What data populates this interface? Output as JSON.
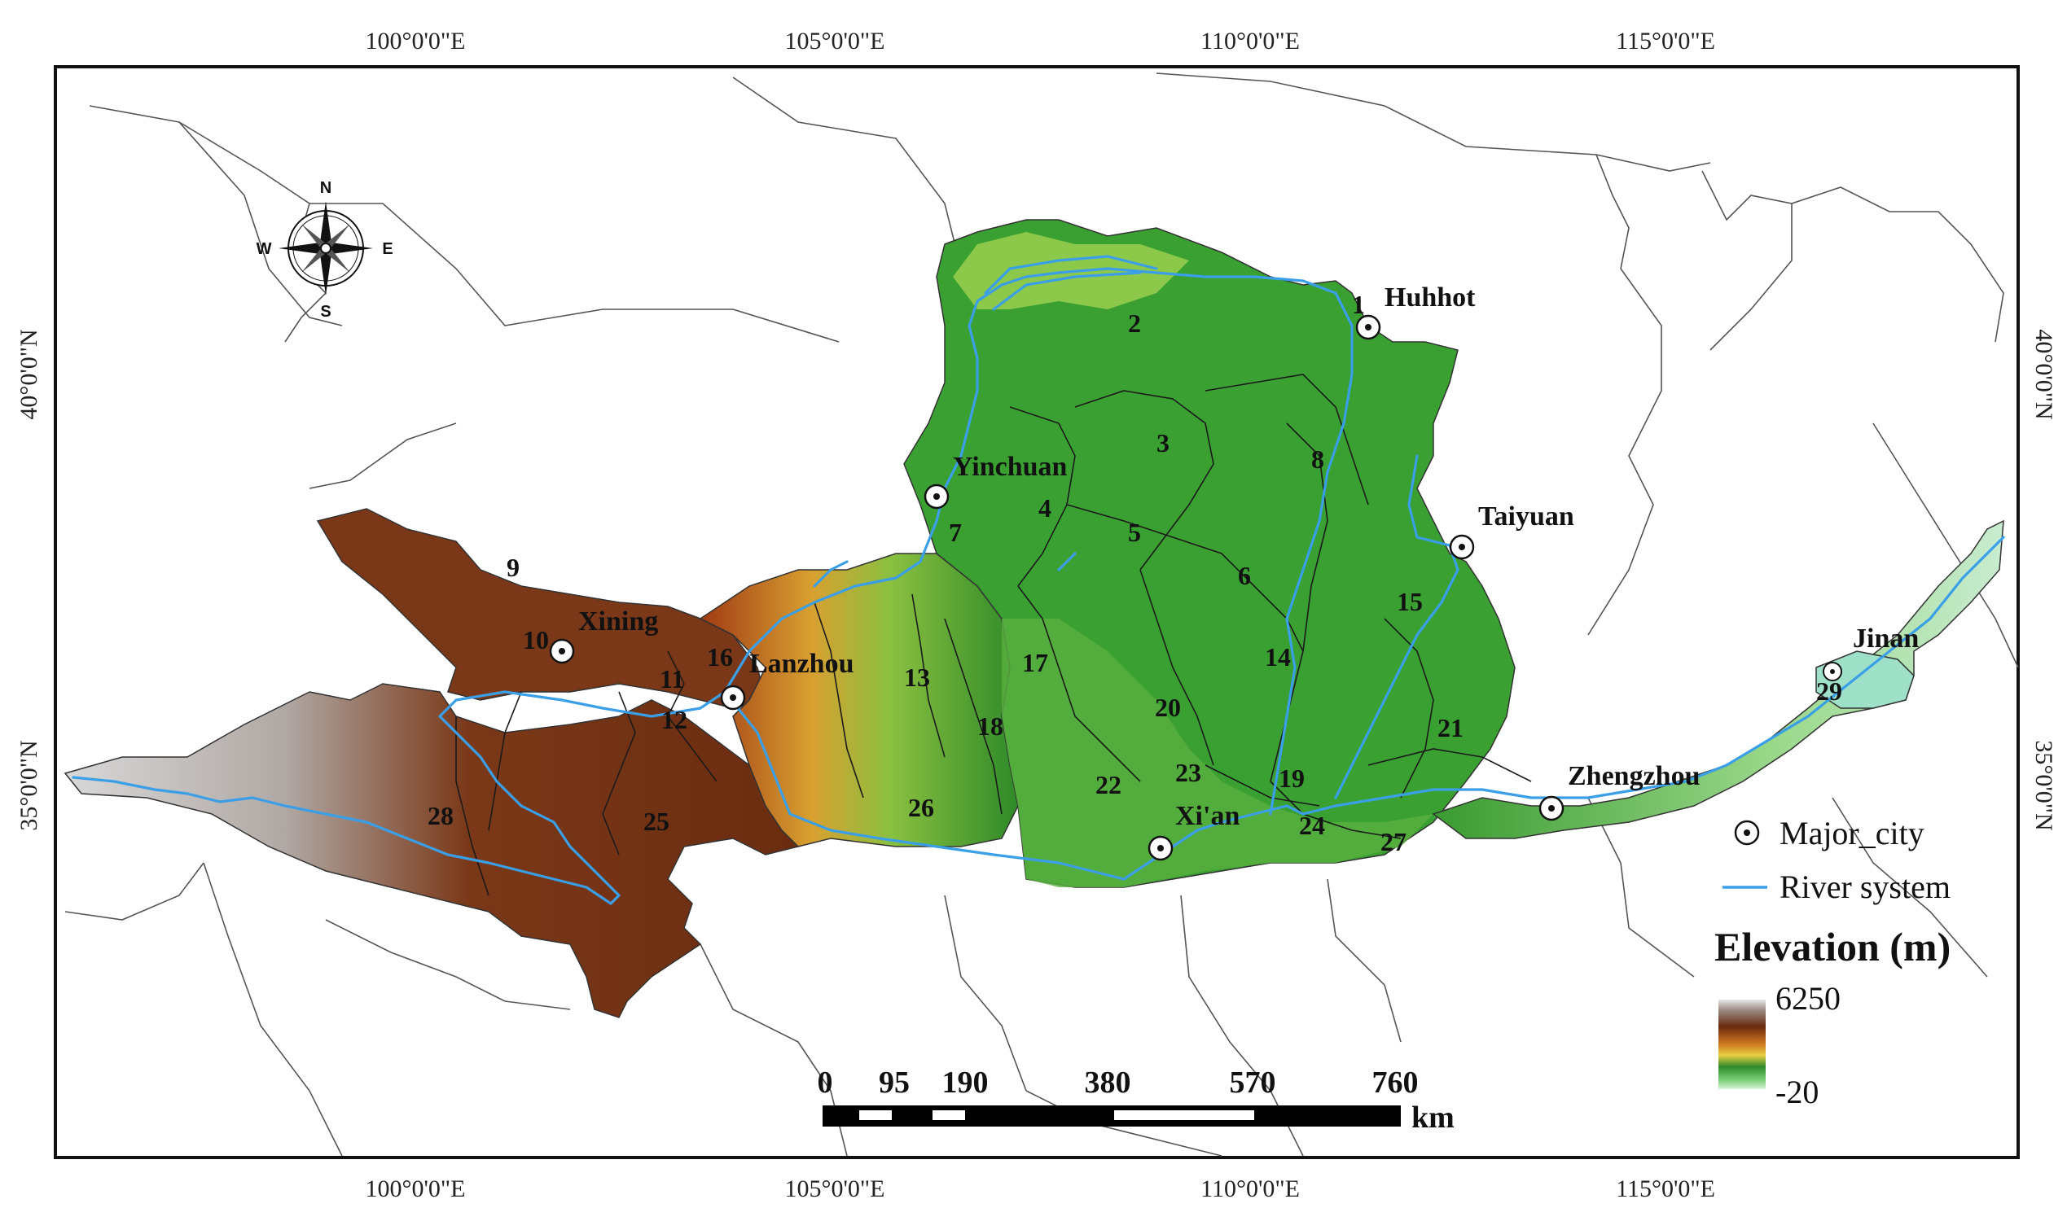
{
  "map": {
    "lon_ticks_top": [
      "100°0'0\"E",
      "105°0'0\"E",
      "110°0'0\"E",
      "115°0'0\"E"
    ],
    "lon_ticks_bottom": [
      "100°0'0\"E",
      "105°0'0\"E",
      "110°0'0\"E",
      "115°0'0\"E"
    ],
    "lat_ticks_left": [
      "40°0'0\"N",
      "35°0'0\"N"
    ],
    "lat_ticks_right": [
      "40°0'0\"N",
      "35°0'0\"N"
    ],
    "cities": [
      "Huhhot",
      "Yinchuan",
      "Taiyuan",
      "Xining",
      "Lanzhou",
      "Xi'an",
      "Zhengzhou",
      "Jinan"
    ],
    "subbasins": [
      "1",
      "2",
      "3",
      "4",
      "5",
      "6",
      "7",
      "8",
      "9",
      "10",
      "11",
      "12",
      "13",
      "14",
      "15",
      "16",
      "17",
      "18",
      "19",
      "20",
      "21",
      "22",
      "23",
      "24",
      "25",
      "26",
      "27",
      "28",
      "29"
    ],
    "compass": {
      "n": "N",
      "s": "S",
      "e": "E",
      "w": "W"
    }
  },
  "legend": {
    "city_label": "Major_city",
    "river_label": "River system",
    "elevation_title": "Elevation (m)",
    "elevation_max": "6250",
    "elevation_min": "-20"
  },
  "scalebar": {
    "labels": [
      "0",
      "95",
      "190",
      "380",
      "570",
      "760"
    ],
    "unit": "km"
  },
  "colors": {
    "river": "#3b9fe8",
    "high": "#7a3a18",
    "mid": "#2f9a2a",
    "low": "#c8ecc8",
    "snow": "#d6d6d6"
  }
}
